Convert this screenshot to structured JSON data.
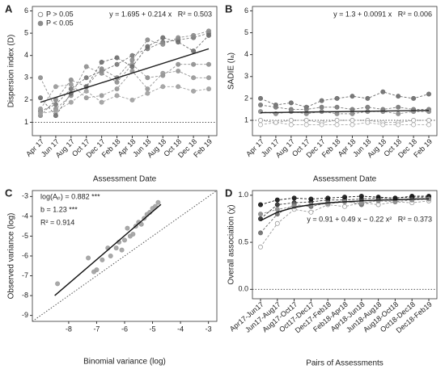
{
  "chart_data": [
    {
      "type": "line",
      "label": "A",
      "xlabel": "Assessment Date",
      "ylabel": "Dispersion index (D)",
      "categories": [
        "Apr 17",
        "Jun 17",
        "Aug 17",
        "Oct 17",
        "Dec 17",
        "Feb 18",
        "Apr 18",
        "Jun 18",
        "Aug 18",
        "Oct 18",
        "Dec 18",
        "Feb 19"
      ],
      "ylim": [
        0.4,
        6.2
      ],
      "yticks": [
        1,
        2,
        3,
        4,
        5,
        6
      ],
      "ref_line": 1,
      "legend": [
        {
          "label": "P > 0.05",
          "marker": "open"
        },
        {
          "label": "P < 0.05",
          "marker": "filled"
        }
      ],
      "annotations": [
        "y = 1.695 + 0.214 x   R² = 0.503"
      ],
      "trend_line": {
        "start": 1.9,
        "end": 4.3
      },
      "series": [
        {
          "color": "#7a7a7a",
          "marker": "filled",
          "values": [
            1.5,
            1.8,
            2.5,
            3.0,
            3.3,
            3.6,
            4.0,
            4.3,
            4.6,
            4.7,
            4.8,
            5.0
          ]
        },
        {
          "color": "#8c8c8c",
          "marker": "filled",
          "values": [
            1.3,
            2.0,
            2.9,
            2.6,
            3.4,
            3.0,
            3.8,
            4.7,
            4.5,
            4.8,
            4.9,
            5.1
          ]
        },
        {
          "color": "#909090",
          "marker": "filled",
          "values": [
            3.0,
            1.6,
            2.2,
            3.5,
            3.2,
            2.8,
            3.6,
            3.0,
            3.1,
            3.6,
            3.6,
            3.6
          ]
        },
        {
          "color": "#999999",
          "marker": "filled",
          "values": [
            1.6,
            2.6,
            2.7,
            2.1,
            2.2,
            2.5,
            3.3,
            2.5,
            3.2,
            3.3,
            3.0,
            3.0
          ]
        },
        {
          "color": "#a0a0a0",
          "marker": "filled",
          "values": [
            1.4,
            1.5,
            1.9,
            2.4,
            1.9,
            2.2,
            2.0,
            2.3,
            2.6,
            2.6,
            2.4,
            2.5
          ]
        },
        {
          "color": "#6e6e6e",
          "marker": "filled",
          "values": [
            2.1,
            1.3,
            2.3,
            2.6,
            3.7,
            3.9,
            3.5,
            4.4,
            4.8,
            4.6,
            4.2,
            4.9
          ]
        }
      ]
    },
    {
      "type": "line",
      "label": "B",
      "xlabel": "Assessment Date",
      "ylabel": "SADIE (Iₐ)",
      "categories": [
        "Apr 17",
        "Jun 17",
        "Aug 17",
        "Oct 17",
        "Dec 17",
        "Feb 18",
        "Apr 18",
        "Jun 18",
        "Aug 18",
        "Oct 18",
        "Dec 18",
        "Feb 19"
      ],
      "ylim": [
        0.3,
        6.2
      ],
      "yticks": [
        1,
        2,
        3,
        4,
        5,
        6
      ],
      "ref_line": 1,
      "annotations": [
        "y = 1.3 + 0.0091 x   R² = 0.006"
      ],
      "trend_line": {
        "start": 1.35,
        "end": 1.45
      },
      "series": [
        {
          "color": "#6e6e6e",
          "marker": "filled",
          "values": [
            2.0,
            1.7,
            1.8,
            1.6,
            1.9,
            2.0,
            2.1,
            2.0,
            2.3,
            2.1,
            2.0,
            2.2
          ]
        },
        {
          "color": "#7a7a7a",
          "marker": "filled",
          "values": [
            1.7,
            1.6,
            1.5,
            1.5,
            1.6,
            1.6,
            1.5,
            1.6,
            1.5,
            1.6,
            1.5,
            1.5
          ]
        },
        {
          "color": "#8c8c8c",
          "marker": "filled",
          "values": [
            1.4,
            1.3,
            1.4,
            1.3,
            1.4,
            1.3,
            1.3,
            1.4,
            1.4,
            1.3,
            1.4,
            1.4
          ]
        },
        {
          "color": "#999999",
          "marker": "open",
          "values": [
            1.0,
            0.9,
            1.0,
            1.0,
            0.9,
            1.0,
            1.0,
            1.0,
            0.9,
            0.9,
            1.0,
            1.0
          ]
        },
        {
          "color": "#a8a8a8",
          "marker": "open",
          "values": [
            0.8,
            0.9,
            0.8,
            0.8,
            0.8,
            0.8,
            0.8,
            0.9,
            0.8,
            0.8,
            0.8,
            0.8
          ]
        }
      ]
    },
    {
      "type": "scatter",
      "label": "C",
      "xlabel": "Binomial variance (log)",
      "ylabel": "Observed variance (log)",
      "xlim": [
        -9.3,
        -2.7
      ],
      "xticks": [
        -8,
        -7,
        -6,
        -5,
        -4,
        -3
      ],
      "ylim": [
        -9.3,
        -2.7
      ],
      "yticks": [
        -9,
        -8,
        -7,
        -6,
        -5,
        -4,
        -3
      ],
      "identity_line": true,
      "annotations": [
        "log(Aₚ) = 0.882 ***",
        "b = 1.23 ***",
        "R² = 0.914"
      ],
      "trend_line": {
        "x": [
          -8.5,
          -4.7
        ],
        "y": [
          -8.0,
          -3.4
        ]
      },
      "series": [
        {
          "color": "#a0a0a0",
          "marker": "filled",
          "x": [
            -8.4,
            -7.3,
            -7.1,
            -7.0,
            -6.8,
            -6.6,
            -6.5,
            -6.3,
            -6.2,
            -6.1,
            -6.0,
            -5.9,
            -5.8,
            -5.7,
            -5.6,
            -5.5,
            -5.4,
            -5.3,
            -5.2,
            -5.1,
            -5.0,
            -4.9,
            -4.8
          ],
          "values": [
            -7.4,
            -6.1,
            -6.8,
            -6.7,
            -6.2,
            -5.6,
            -6.0,
            -5.6,
            -5.3,
            -5.7,
            -5.2,
            -4.6,
            -5.0,
            -4.9,
            -4.5,
            -4.3,
            -4.4,
            -4.1,
            -3.9,
            -3.8,
            -3.6,
            -3.5,
            -3.3
          ]
        }
      ]
    },
    {
      "type": "line",
      "label": "D",
      "xlabel": "Pairs of Assessments",
      "ylabel": "Overall association (χ)",
      "categories": [
        "Apr17-Jun17",
        "Jun17-Aug17",
        "Aug17-Oct17",
        "Oct17-Dec17",
        "Dec17-Feb18",
        "Feb18-Apr18",
        "Apr18-Jun18",
        "Jun18-Aug18",
        "Aug18-Oct18",
        "Oct18-Dec18",
        "Dec18-Feb19"
      ],
      "ylim": [
        -0.1,
        1.05
      ],
      "yticks": [
        {
          "value": 0,
          "label": "0.0"
        },
        {
          "value": 0.5,
          "label": "0.5"
        },
        {
          "value": 1,
          "label": "1.0"
        }
      ],
      "ref_line": 0,
      "annotations": [
        "y = 0.91 + 0.49 x − 0.22 x²   R² = 0.373"
      ],
      "trend": [
        0.73,
        0.82,
        0.87,
        0.9,
        0.92,
        0.93,
        0.94,
        0.95,
        0.95,
        0.96,
        0.96
      ],
      "series": [
        {
          "color": "#333333",
          "marker": "filled",
          "values": [
            0.75,
            0.9,
            0.92,
            0.93,
            0.95,
            0.95,
            0.96,
            0.97,
            0.97,
            0.98,
            0.98
          ]
        },
        {
          "color": "#6e6e6e",
          "marker": "filled",
          "values": [
            0.6,
            0.8,
            0.9,
            0.88,
            0.92,
            0.94,
            0.9,
            0.95,
            0.96,
            0.95,
            0.97
          ]
        },
        {
          "color": "#1a1a1a",
          "marker": "filled",
          "values": [
            0.9,
            0.95,
            0.97,
            0.96,
            0.97,
            0.98,
            0.99,
            0.98,
            0.97,
            0.99,
            0.99
          ]
        },
        {
          "color": "#999999",
          "marker": "open",
          "values": [
            0.45,
            0.7,
            0.85,
            0.82,
            0.9,
            0.88,
            0.92,
            0.9,
            0.93,
            0.92,
            0.94
          ]
        },
        {
          "color": "#8c8c8c",
          "marker": "filled",
          "values": [
            0.8,
            0.85,
            0.88,
            0.9,
            0.91,
            0.93,
            0.92,
            0.94,
            0.93,
            0.95,
            0.96
          ]
        }
      ]
    }
  ]
}
